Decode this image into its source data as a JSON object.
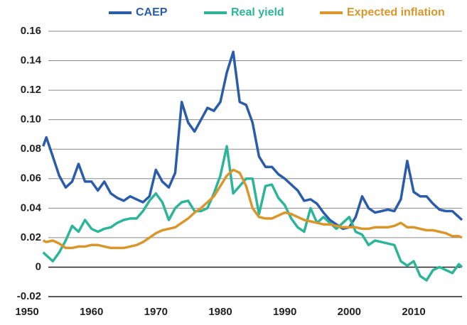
{
  "chart_data": {
    "type": "line",
    "x": [
      1952.5,
      1953,
      1954,
      1955,
      1956,
      1957,
      1958,
      1959,
      1960,
      1961,
      1962,
      1963,
      1964,
      1965,
      1966,
      1967,
      1968,
      1969,
      1970,
      1971,
      1972,
      1973,
      1974,
      1975,
      1976,
      1977,
      1978,
      1979,
      1980,
      1981,
      1982,
      1983,
      1984,
      1985,
      1986,
      1987,
      1988,
      1989,
      1990,
      1991,
      1992,
      1993,
      1994,
      1995,
      1996,
      1997,
      1998,
      1999,
      2000,
      2001,
      2002,
      2003,
      2004,
      2005,
      2006,
      2007,
      2008,
      2009,
      2010,
      2011,
      2012,
      2013,
      2014,
      2015,
      2016,
      2017,
      2017.5
    ],
    "series": [
      {
        "name": "CAEP",
        "color": "#2a5caa",
        "values": [
          0.082,
          0.088,
          0.075,
          0.062,
          0.054,
          0.058,
          0.07,
          0.058,
          0.058,
          0.052,
          0.058,
          0.05,
          0.047,
          0.045,
          0.048,
          0.046,
          0.044,
          0.048,
          0.066,
          0.058,
          0.054,
          0.064,
          0.112,
          0.098,
          0.092,
          0.1,
          0.108,
          0.106,
          0.112,
          0.132,
          0.146,
          0.112,
          0.11,
          0.098,
          0.075,
          0.068,
          0.068,
          0.063,
          0.06,
          0.056,
          0.052,
          0.045,
          0.046,
          0.043,
          0.037,
          0.032,
          0.029,
          0.026,
          0.027,
          0.034,
          0.048,
          0.04,
          0.037,
          0.038,
          0.039,
          0.038,
          0.046,
          0.072,
          0.051,
          0.048,
          0.048,
          0.043,
          0.039,
          0.038,
          0.038,
          0.034,
          0.032
        ]
      },
      {
        "name": "Real yield",
        "color": "#2db59a",
        "values": [
          0.01,
          0.008,
          0.004,
          0.01,
          0.018,
          0.028,
          0.024,
          0.032,
          0.026,
          0.024,
          0.026,
          0.027,
          0.03,
          0.032,
          0.033,
          0.033,
          0.038,
          0.045,
          0.05,
          0.044,
          0.032,
          0.04,
          0.044,
          0.045,
          0.038,
          0.038,
          0.04,
          0.05,
          0.062,
          0.082,
          0.05,
          0.055,
          0.06,
          0.06,
          0.036,
          0.055,
          0.056,
          0.047,
          0.042,
          0.033,
          0.027,
          0.024,
          0.04,
          0.03,
          0.034,
          0.03,
          0.026,
          0.03,
          0.034,
          0.024,
          0.022,
          0.015,
          0.018,
          0.017,
          0.016,
          0.015,
          0.004,
          0.001,
          0.004,
          -0.006,
          -0.009,
          -0.002,
          0.0,
          -0.002,
          -0.004,
          0.002,
          0.0
        ]
      },
      {
        "name": "Expected inflation",
        "color": "#d9962b",
        "values": [
          0.018,
          0.017,
          0.018,
          0.016,
          0.013,
          0.013,
          0.014,
          0.014,
          0.015,
          0.015,
          0.014,
          0.013,
          0.013,
          0.013,
          0.014,
          0.015,
          0.017,
          0.02,
          0.023,
          0.025,
          0.026,
          0.027,
          0.03,
          0.033,
          0.037,
          0.04,
          0.044,
          0.048,
          0.055,
          0.062,
          0.066,
          0.064,
          0.055,
          0.04,
          0.034,
          0.033,
          0.033,
          0.035,
          0.037,
          0.036,
          0.034,
          0.032,
          0.031,
          0.03,
          0.029,
          0.029,
          0.028,
          0.027,
          0.027,
          0.027,
          0.026,
          0.026,
          0.027,
          0.027,
          0.027,
          0.028,
          0.03,
          0.027,
          0.027,
          0.026,
          0.025,
          0.025,
          0.024,
          0.023,
          0.021,
          0.021,
          0.02
        ]
      }
    ],
    "xlim": [
      1950,
      2017.5
    ],
    "xticks": [
      1950,
      1960,
      1970,
      1980,
      1990,
      2000,
      2010
    ],
    "ylim": [
      -0.02,
      0.16
    ],
    "yticks": [
      -0.02,
      0,
      0.02,
      0.04,
      0.06,
      0.08,
      {
        "value": 0.1,
        "label": "0.10"
      },
      0.12,
      0.14,
      0.16
    ],
    "grid": true,
    "legend": "top"
  }
}
